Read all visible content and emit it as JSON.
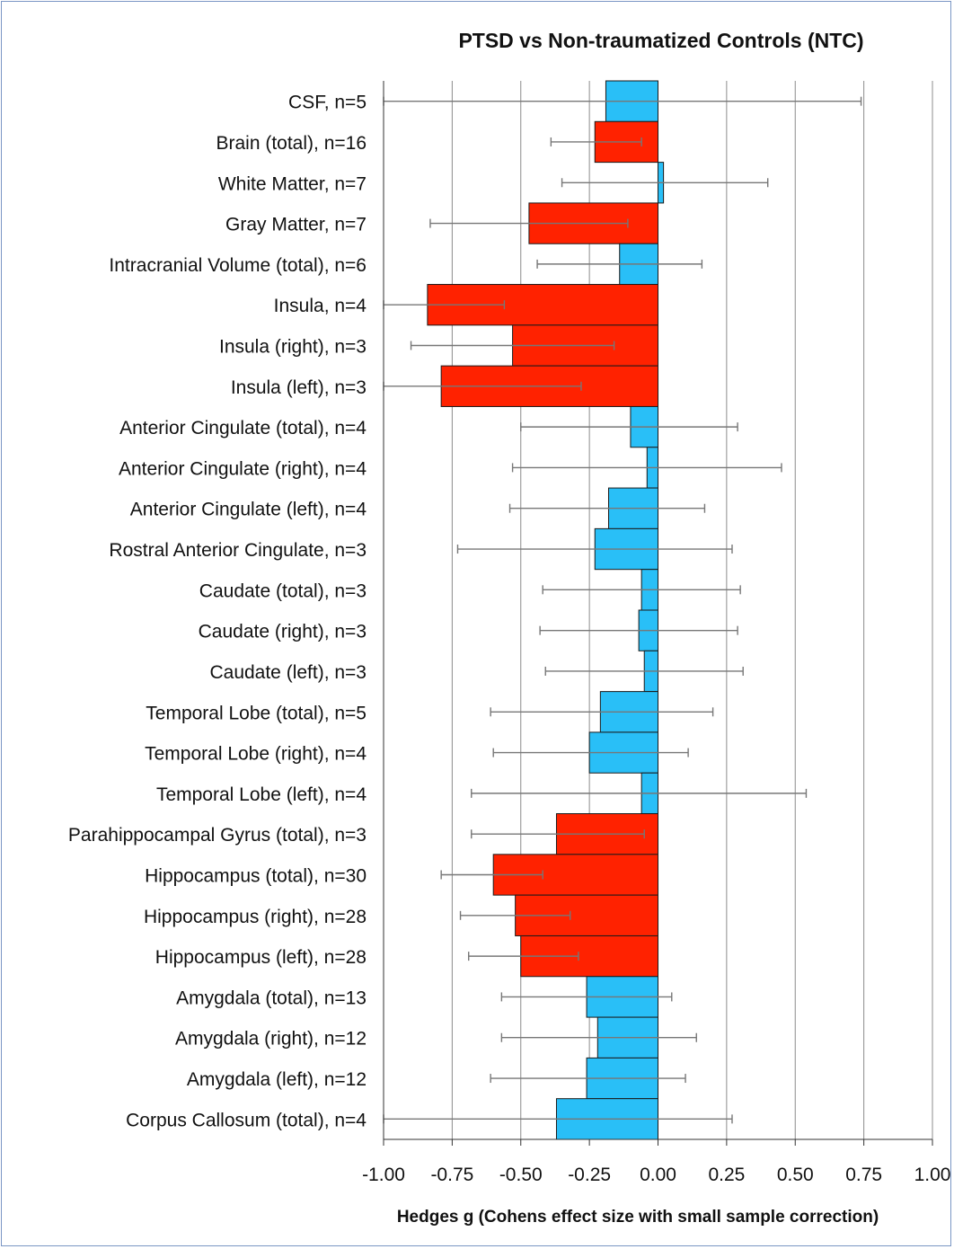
{
  "chart_data": {
    "type": "bar",
    "orientation": "horizontal",
    "title": "PTSD vs Non-traumatized Controls (NTC)",
    "xlabel": "Hedges g (Cohens effect size with small sample correction)",
    "ylabel": "",
    "xlim": [
      -1.0,
      1.0
    ],
    "xticks": [
      "-1.00",
      "-0.75",
      "-0.50",
      "-0.25",
      "0.00",
      "0.25",
      "0.50",
      "0.75",
      "1.00"
    ],
    "grid": true,
    "colors": {
      "significant": "#ff2200",
      "non_significant": "#29bff7",
      "error_bar": "#777777",
      "grid": "#8c8c8c"
    },
    "categories": [
      "CSF, n=5",
      "Brain (total), n=16",
      "White Matter, n=7",
      "Gray Matter, n=7",
      "Intracranial Volume (total), n=6",
      "Insula, n=4",
      "Insula (right), n=3",
      "Insula (left), n=3",
      "Anterior Cingulate (total), n=4",
      "Anterior Cingulate (right), n=4",
      "Anterior Cingulate (left), n=4",
      "Rostral Anterior Cingulate, n=3",
      "Caudate (total), n=3",
      "Caudate (right), n=3",
      "Caudate (left), n=3",
      "Temporal Lobe (total), n=5",
      "Temporal Lobe (right), n=4",
      "Temporal Lobe (left), n=4",
      "Parahippocampal Gyrus (total), n=3",
      "Hippocampus (total), n=30",
      "Hippocampus (right), n=28",
      "Hippocampus (left), n=28",
      "Amygdala (total), n=13",
      "Amygdala (right), n=12",
      "Amygdala (left), n=12",
      "Corpus Callosum (total), n=4"
    ],
    "values": [
      -0.19,
      -0.23,
      0.02,
      -0.47,
      -0.14,
      -0.84,
      -0.53,
      -0.79,
      -0.1,
      -0.04,
      -0.18,
      -0.23,
      -0.06,
      -0.07,
      -0.05,
      -0.21,
      -0.25,
      -0.06,
      -0.37,
      -0.6,
      -0.52,
      -0.5,
      -0.26,
      -0.22,
      -0.26,
      -0.37
    ],
    "ci_low": [
      -1.0,
      -0.39,
      -0.35,
      -0.83,
      -0.44,
      -1.0,
      -0.9,
      -1.0,
      -0.5,
      -0.53,
      -0.54,
      -0.73,
      -0.42,
      -0.43,
      -0.41,
      -0.61,
      -0.6,
      -0.68,
      -0.68,
      -0.79,
      -0.72,
      -0.69,
      -0.57,
      -0.57,
      -0.61,
      -1.0
    ],
    "ci_high": [
      0.74,
      -0.06,
      0.4,
      -0.11,
      0.16,
      -0.56,
      -0.16,
      -0.28,
      0.29,
      0.45,
      0.17,
      0.27,
      0.3,
      0.29,
      0.31,
      0.2,
      0.11,
      0.54,
      -0.05,
      -0.42,
      -0.32,
      -0.29,
      0.05,
      0.14,
      0.1,
      0.27
    ],
    "significant": [
      false,
      true,
      false,
      true,
      false,
      true,
      true,
      true,
      false,
      false,
      false,
      false,
      false,
      false,
      false,
      false,
      false,
      false,
      true,
      true,
      true,
      true,
      false,
      false,
      false,
      false
    ]
  }
}
